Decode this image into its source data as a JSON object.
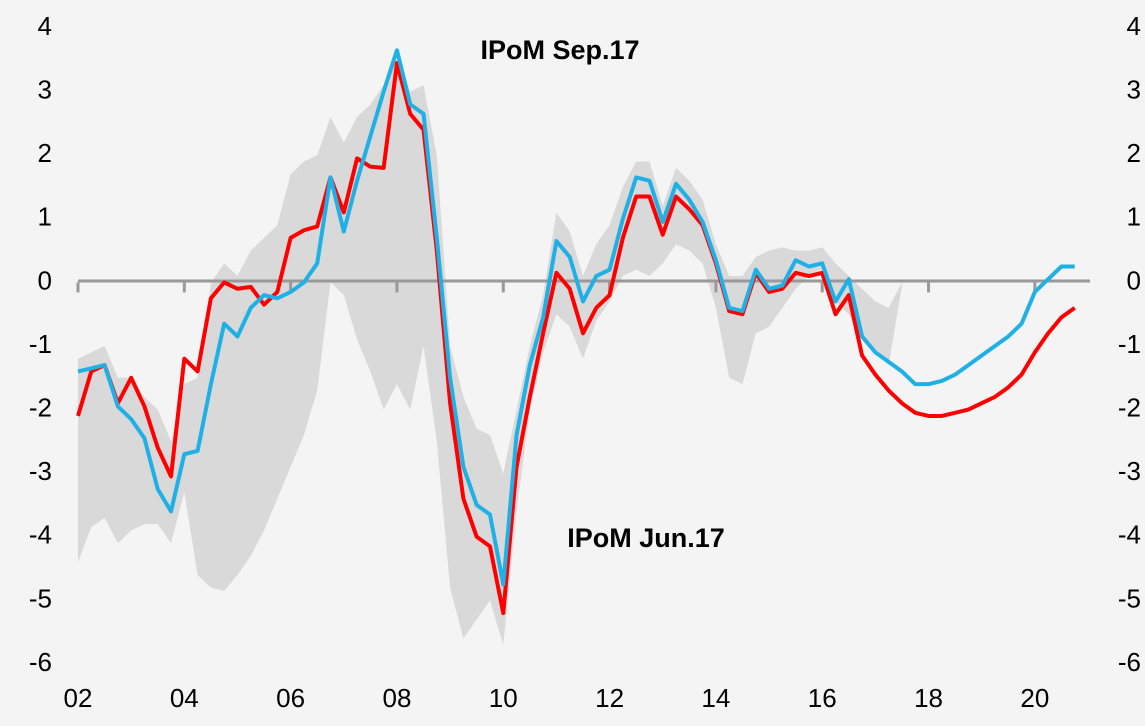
{
  "chart_data": {
    "type": "line",
    "x": [
      2,
      2.25,
      2.5,
      2.75,
      3,
      3.25,
      3.5,
      3.75,
      4,
      4.25,
      4.5,
      4.75,
      5,
      5.25,
      5.5,
      5.75,
      6,
      6.25,
      6.5,
      6.75,
      7,
      7.25,
      7.5,
      7.75,
      8,
      8.25,
      8.5,
      8.75,
      9,
      9.25,
      9.5,
      9.75,
      10,
      10.25,
      10.5,
      10.75,
      11,
      11.25,
      11.5,
      11.75,
      12,
      12.25,
      12.5,
      12.75,
      13,
      13.25,
      13.5,
      13.75,
      14,
      14.25,
      14.5,
      14.75,
      15,
      15.25,
      15.5,
      15.75,
      16,
      16.25,
      16.5,
      16.75,
      17,
      17.25,
      17.5,
      17.75,
      18,
      18.25,
      18.5,
      18.75,
      19,
      19.25,
      19.5,
      19.75,
      20,
      20.25,
      20.5,
      20.75
    ],
    "band": {
      "color": "#d9d9d9",
      "upper": [
        -1.2,
        -1.1,
        -1.0,
        -1.5,
        -1.5,
        -1.8,
        -2.0,
        -2.5,
        -1.6,
        -1.5,
        0.0,
        0.3,
        0.1,
        0.5,
        0.7,
        0.9,
        1.7,
        1.9,
        2.0,
        2.6,
        2.2,
        2.6,
        2.8,
        3.1,
        3.5,
        3.0,
        3.1,
        2.0,
        -1.0,
        -1.8,
        -2.3,
        -2.4,
        -3.0,
        -2.0,
        -1.0,
        -0.2,
        1.1,
        0.8,
        0.1,
        0.6,
        0.9,
        1.5,
        1.9,
        1.9,
        1.2,
        1.8,
        1.6,
        1.3,
        0.6,
        0.1,
        0.1,
        0.4,
        0.5,
        0.55,
        0.5,
        0.5,
        0.55,
        0.3,
        0.1,
        -0.1,
        -0.3,
        -0.4,
        0.0,
        null,
        null,
        null,
        null,
        null,
        null,
        null,
        null,
        null,
        null,
        null,
        null,
        null
      ],
      "lower": [
        -4.4,
        -3.85,
        -3.7,
        -4.1,
        -3.9,
        -3.8,
        -3.8,
        -4.1,
        -3.3,
        -4.6,
        -4.8,
        -4.85,
        -4.6,
        -4.3,
        -3.9,
        -3.4,
        -2.9,
        -2.4,
        -1.7,
        0.0,
        -0.2,
        -0.9,
        -1.4,
        -2.0,
        -1.6,
        -2.0,
        -1.0,
        -2.5,
        -4.8,
        -5.6,
        -5.3,
        -5.0,
        -5.7,
        -3.6,
        -2.0,
        -1.1,
        -0.5,
        -0.7,
        -1.2,
        -0.6,
        -0.3,
        0.1,
        0.2,
        0.1,
        0.3,
        0.6,
        0.5,
        0.3,
        -0.4,
        -1.5,
        -1.6,
        -0.8,
        -0.7,
        -0.4,
        -0.1,
        0.1,
        0.2,
        -0.3,
        -0.5,
        -0.9,
        -1.1,
        -1.3,
        -0.05,
        null,
        null,
        null,
        null,
        null,
        null,
        null,
        null,
        null,
        null,
        null,
        null,
        null
      ]
    },
    "series": [
      {
        "name": "IPoM Jun.17",
        "color": "#ff0000",
        "values": [
          -2.1,
          -1.4,
          -1.3,
          -1.9,
          -1.5,
          -1.95,
          -2.6,
          -3.05,
          -1.2,
          -1.4,
          -0.25,
          0.0,
          -0.1,
          -0.07,
          -0.35,
          -0.15,
          0.7,
          0.82,
          0.88,
          1.65,
          1.1,
          1.95,
          1.82,
          1.8,
          3.45,
          2.65,
          2.4,
          0.5,
          -1.9,
          -3.4,
          -4.0,
          -4.15,
          -5.2,
          -2.9,
          -1.8,
          -0.8,
          0.15,
          -0.1,
          -0.8,
          -0.4,
          -0.2,
          0.7,
          1.35,
          1.35,
          0.75,
          1.35,
          1.15,
          0.9,
          0.3,
          -0.45,
          -0.5,
          0.15,
          -0.15,
          -0.1,
          0.15,
          0.1,
          0.15,
          -0.5,
          -0.2,
          -1.15,
          -1.45,
          -1.7,
          -1.9,
          -2.05,
          -2.1,
          -2.1,
          -2.05,
          -2.0,
          -1.9,
          -1.8,
          -1.65,
          -1.45,
          -1.1,
          -0.8,
          -0.55,
          -0.4
        ]
      },
      {
        "name": "IPoM Sep.17",
        "color": "#1fb0e6",
        "values": [
          -1.4,
          -1.35,
          -1.3,
          -1.95,
          -2.15,
          -2.45,
          -3.25,
          -3.6,
          -2.7,
          -2.65,
          -1.6,
          -0.65,
          -0.85,
          -0.4,
          -0.2,
          -0.25,
          -0.15,
          0.0,
          0.3,
          1.65,
          0.8,
          1.6,
          2.3,
          3.0,
          3.65,
          2.8,
          2.65,
          0.7,
          -1.5,
          -2.9,
          -3.5,
          -3.65,
          -4.75,
          -2.4,
          -1.3,
          -0.55,
          0.65,
          0.4,
          -0.3,
          0.1,
          0.2,
          1.0,
          1.65,
          1.6,
          0.95,
          1.55,
          1.3,
          0.95,
          0.35,
          -0.4,
          -0.45,
          0.2,
          -0.1,
          -0.05,
          0.35,
          0.25,
          0.3,
          -0.3,
          0.05,
          -0.85,
          -1.1,
          -1.25,
          -1.4,
          -1.6,
          -1.6,
          -1.55,
          -1.45,
          -1.3,
          -1.15,
          -1.0,
          -0.85,
          -0.65,
          -0.15,
          0.05,
          0.25,
          0.25
        ]
      }
    ],
    "xlim": [
      2,
      21
    ],
    "xticks": [
      {
        "value": 2,
        "label": "02"
      },
      {
        "value": 4,
        "label": "04"
      },
      {
        "value": 6,
        "label": "06"
      },
      {
        "value": 8,
        "label": "08"
      },
      {
        "value": 10,
        "label": "10"
      },
      {
        "value": 12,
        "label": "12"
      },
      {
        "value": 14,
        "label": "14"
      },
      {
        "value": 16,
        "label": "16"
      },
      {
        "value": 18,
        "label": "18"
      },
      {
        "value": 20,
        "label": "20"
      }
    ],
    "ylim": [
      -6,
      4
    ],
    "yticks": [
      -6,
      -5,
      -4,
      -3,
      -2,
      -1,
      0,
      1,
      2,
      3,
      4
    ],
    "y2lim": [
      -6,
      4
    ],
    "y2ticks": [
      -6,
      -5,
      -4,
      -3,
      -2,
      -1,
      0,
      1,
      2,
      3,
      4
    ],
    "grid": false
  }
}
